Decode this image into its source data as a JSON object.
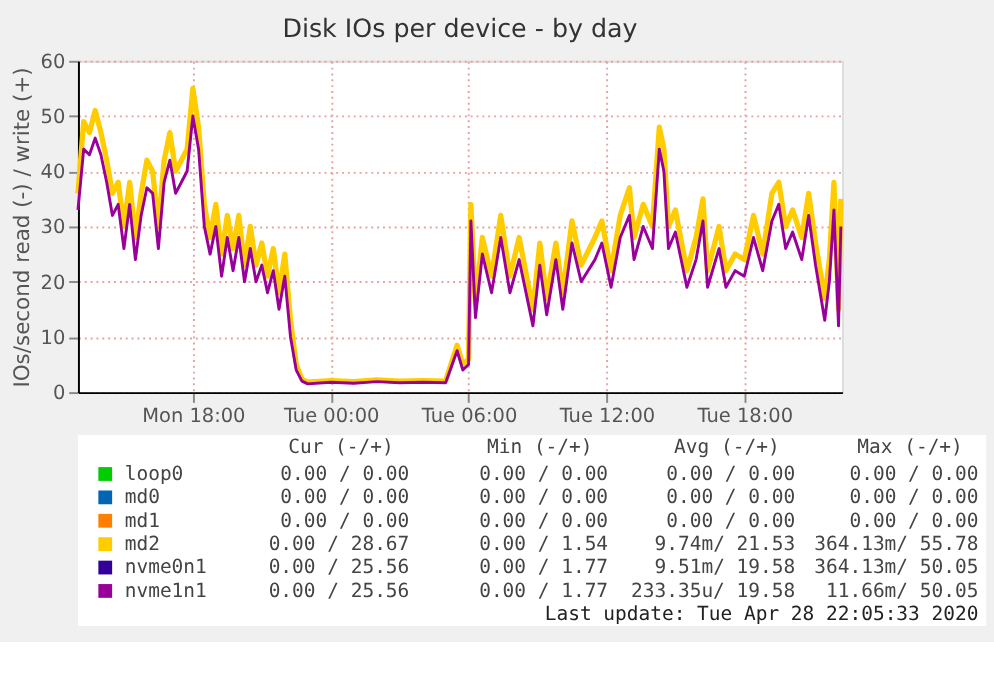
{
  "chart_data": {
    "type": "line",
    "title": "Disk IOs per device - by day",
    "ylabel": "IOs/second read (-) / write (+)",
    "x": [
      "2020-04-27T13:00",
      "2020-04-27T13:15",
      "2020-04-27T13:30",
      "2020-04-27T13:45",
      "2020-04-27T14:00",
      "2020-04-27T14:15",
      "2020-04-27T14:30",
      "2020-04-27T14:45",
      "2020-04-27T15:00",
      "2020-04-27T15:15",
      "2020-04-27T15:30",
      "2020-04-27T15:45",
      "2020-04-27T16:00",
      "2020-04-27T16:15",
      "2020-04-27T16:30",
      "2020-04-27T16:45",
      "2020-04-27T17:00",
      "2020-04-27T17:15",
      "2020-04-27T17:30",
      "2020-04-27T17:45",
      "2020-04-27T18:00",
      "2020-04-27T18:15",
      "2020-04-27T18:30",
      "2020-04-27T18:45",
      "2020-04-27T19:00",
      "2020-04-27T19:15",
      "2020-04-27T19:30",
      "2020-04-27T19:45",
      "2020-04-27T20:00",
      "2020-04-27T20:15",
      "2020-04-27T20:30",
      "2020-04-27T20:45",
      "2020-04-27T21:00",
      "2020-04-27T21:15",
      "2020-04-27T21:30",
      "2020-04-27T21:45",
      "2020-04-27T22:00",
      "2020-04-27T22:15",
      "2020-04-27T22:30",
      "2020-04-27T22:45",
      "2020-04-27T23:00",
      "2020-04-28T00:00",
      "2020-04-28T01:00",
      "2020-04-28T02:00",
      "2020-04-28T03:00",
      "2020-04-28T04:00",
      "2020-04-28T05:00",
      "2020-04-28T05:30",
      "2020-04-28T05:45",
      "2020-04-28T06:00",
      "2020-04-28T06:06",
      "2020-04-28T06:18",
      "2020-04-28T06:36",
      "2020-04-28T07:00",
      "2020-04-28T07:24",
      "2020-04-28T07:48",
      "2020-04-28T08:12",
      "2020-04-28T08:48",
      "2020-04-28T09:06",
      "2020-04-28T09:24",
      "2020-04-28T09:48",
      "2020-04-28T10:06",
      "2020-04-28T10:30",
      "2020-04-28T10:54",
      "2020-04-28T11:30",
      "2020-04-28T11:48",
      "2020-04-28T12:12",
      "2020-04-28T12:36",
      "2020-04-28T13:00",
      "2020-04-28T13:12",
      "2020-04-28T13:36",
      "2020-04-28T14:00",
      "2020-04-28T14:18",
      "2020-04-28T14:30",
      "2020-04-28T14:42",
      "2020-04-28T15:00",
      "2020-04-28T15:30",
      "2020-04-28T15:54",
      "2020-04-28T16:12",
      "2020-04-28T16:24",
      "2020-04-28T16:54",
      "2020-04-28T17:12",
      "2020-04-28T17:36",
      "2020-04-28T18:00",
      "2020-04-28T18:24",
      "2020-04-28T18:48",
      "2020-04-28T19:12",
      "2020-04-28T19:30",
      "2020-04-28T19:48",
      "2020-04-28T20:06",
      "2020-04-28T20:30",
      "2020-04-28T20:48",
      "2020-04-28T21:06",
      "2020-04-28T21:30",
      "2020-04-28T21:42",
      "2020-04-28T21:54",
      "2020-04-28T22:06",
      "2020-04-28T22:12"
    ],
    "series": [
      {
        "name": "loop0",
        "color": "#00cc00",
        "values": [
          null,
          null,
          null,
          null,
          null,
          null,
          null,
          null,
          null,
          null,
          null,
          null,
          null,
          null,
          null,
          null,
          null,
          null,
          null,
          null,
          null,
          null,
          null,
          null,
          null,
          null,
          null,
          null,
          null,
          null,
          null,
          null,
          null,
          null,
          null,
          null,
          null,
          null,
          null,
          null,
          null,
          null,
          null,
          null,
          null,
          null,
          null,
          null,
          null,
          null,
          null,
          null,
          null,
          null,
          null,
          null,
          null,
          null,
          null,
          null,
          null,
          null,
          null,
          null,
          null,
          null,
          null,
          null,
          null,
          null,
          null,
          null,
          null,
          null,
          null,
          null,
          null,
          null,
          null,
          null,
          null,
          null,
          null,
          null,
          null,
          null,
          null,
          null,
          null,
          null,
          null,
          null,
          null,
          null,
          null,
          null,
          null,
          null
        ]
      },
      {
        "name": "md0",
        "color": "#0066b3",
        "values": [
          null,
          null,
          null,
          null,
          null,
          null,
          null,
          null,
          null,
          null,
          null,
          null,
          null,
          null,
          null,
          null,
          null,
          null,
          null,
          null,
          null,
          null,
          null,
          null,
          null,
          null,
          null,
          null,
          null,
          null,
          null,
          null,
          null,
          null,
          null,
          null,
          null,
          null,
          null,
          null,
          null,
          null,
          null,
          null,
          null,
          null,
          null,
          null,
          null,
          null,
          null,
          null,
          null,
          null,
          null,
          null,
          null,
          null,
          null,
          null,
          null,
          null,
          null,
          null,
          null,
          null,
          null,
          null,
          null,
          null,
          null,
          null,
          null,
          null,
          null,
          null,
          null,
          null,
          null,
          null,
          null,
          null,
          null,
          null,
          null,
          null,
          null,
          null,
          null,
          null,
          null,
          null,
          null,
          null,
          null,
          null,
          null,
          null
        ]
      },
      {
        "name": "md1",
        "color": "#ff8000",
        "values": [
          null,
          null,
          null,
          null,
          null,
          null,
          null,
          null,
          null,
          null,
          null,
          null,
          null,
          null,
          null,
          null,
          null,
          null,
          null,
          null,
          null,
          null,
          null,
          null,
          null,
          null,
          null,
          null,
          null,
          null,
          null,
          null,
          null,
          null,
          null,
          null,
          null,
          null,
          null,
          null,
          null,
          null,
          null,
          null,
          null,
          null,
          null,
          null,
          null,
          null,
          null,
          null,
          null,
          null,
          null,
          null,
          null,
          null,
          null,
          null,
          null,
          null,
          null,
          null,
          null,
          null,
          null,
          null,
          null,
          null,
          null,
          null,
          null,
          null,
          null,
          null,
          null,
          null,
          null,
          null,
          null,
          null,
          null,
          null,
          null,
          null,
          null,
          null,
          null,
          null,
          null,
          null,
          null,
          null,
          null,
          null,
          null,
          null
        ]
      },
      {
        "name": "md2",
        "color": "#ffcc00",
        "values": [
          36,
          49,
          47,
          51,
          47,
          42,
          36,
          38,
          30,
          38,
          28,
          36,
          42,
          40,
          30,
          42,
          47,
          40,
          42,
          44,
          55,
          48,
          34,
          28,
          34,
          25,
          32,
          26,
          32,
          23,
          30,
          23,
          27,
          21,
          26,
          18,
          25,
          13,
          5,
          2.3,
          1.8,
          2.1,
          1.9,
          2.2,
          2.0,
          2.1,
          2.0,
          8.5,
          5,
          6,
          34,
          16,
          28,
          21,
          32,
          21,
          28,
          15,
          27,
          17,
          27,
          18,
          31,
          23,
          28,
          31,
          22,
          32,
          37,
          28,
          34,
          30,
          48,
          44,
          30,
          33,
          22,
          28,
          35,
          22,
          30,
          22,
          25,
          24,
          32,
          25,
          36,
          38,
          30,
          33,
          28,
          36,
          27,
          17,
          24,
          38,
          15,
          35
        ]
      },
      {
        "name": "nvme0n1",
        "color": "#330099",
        "values": [
          null,
          null,
          null,
          null,
          null,
          null,
          null,
          null,
          null,
          null,
          null,
          null,
          null,
          null,
          null,
          null,
          null,
          null,
          null,
          null,
          null,
          null,
          null,
          null,
          null,
          null,
          null,
          null,
          null,
          null,
          null,
          null,
          null,
          null,
          null,
          null,
          null,
          null,
          null,
          null,
          null,
          null,
          null,
          null,
          null,
          null,
          null,
          null,
          null,
          null,
          null,
          null,
          null,
          null,
          null,
          null,
          null,
          null,
          null,
          null,
          null,
          null,
          null,
          null,
          null,
          null,
          null,
          null,
          null,
          null,
          null,
          null,
          null,
          null,
          null,
          null,
          null,
          null,
          null,
          null,
          null,
          null,
          null,
          null,
          null,
          null,
          null,
          null,
          null,
          null,
          null,
          null,
          null,
          null,
          null,
          null,
          null,
          null
        ]
      },
      {
        "name": "nvme1n1",
        "color": "#990099",
        "values": [
          33,
          44,
          43,
          46,
          43,
          38,
          32,
          34,
          26,
          34,
          24,
          32,
          37,
          36,
          26,
          38,
          42,
          36,
          38,
          40,
          50,
          44,
          30,
          25,
          30,
          21,
          28,
          22,
          28,
          20,
          26,
          20,
          23,
          18,
          22,
          15,
          21,
          10,
          4,
          2,
          1.5,
          1.8,
          1.6,
          1.9,
          1.7,
          1.8,
          1.7,
          7.5,
          4,
          5,
          31,
          13.5,
          25,
          18,
          28,
          18,
          24,
          12,
          23,
          14,
          24,
          15,
          27,
          20,
          24,
          27,
          19,
          28,
          32,
          24,
          30,
          26,
          44,
          40,
          26,
          29,
          19,
          24,
          31,
          19,
          26,
          19,
          22,
          21,
          28,
          22,
          31,
          34,
          26,
          29,
          24,
          32,
          23,
          13,
          20,
          33,
          12,
          30
        ]
      }
    ],
    "xlim": [
      "2020-04-27T13:00",
      "2020-04-28T22:15"
    ],
    "xticks": [
      {
        "value": "2020-04-27T18:00",
        "label": "Mon 18:00"
      },
      {
        "value": "2020-04-28T00:00",
        "label": "Tue 00:00"
      },
      {
        "value": "2020-04-28T06:00",
        "label": "Tue 06:00"
      },
      {
        "value": "2020-04-28T12:00",
        "label": "Tue 12:00"
      },
      {
        "value": "2020-04-28T18:00",
        "label": "Tue 18:00"
      }
    ],
    "ylim": [
      0,
      60
    ],
    "yticks": [
      0,
      10,
      20,
      30,
      40,
      50,
      60
    ],
    "grid": true,
    "legend": "bottom",
    "line_style": "solid",
    "marker": "none",
    "annotations": [
      "Cur (-/+)",
      "Min (-/+)",
      "Avg (-/+)",
      "Max (-/+)",
      "0.00 /  0.00",
      "0.00 /  0.00",
      "0.00 /  0.00",
      "0.00 /  0.00",
      "0.00 /  0.00",
      "0.00 /  0.00",
      "0.00 /  0.00",
      "0.00 /  0.00",
      "0.00 /  0.00",
      "0.00 /  0.00",
      "0.00 /  0.00",
      "0.00 /  0.00",
      "0.00 / 28.67",
      "0.00 /  1.54",
      "9.74m/ 21.53",
      "364.13m/ 55.78",
      "0.00 / 25.56",
      "0.00 /  1.77",
      "9.51m/ 19.58",
      "364.13m/ 50.05",
      "0.00 / 25.56",
      "0.00 /  1.77",
      "233.35u/ 19.58",
      "11.66m/ 50.05",
      "Last update: Tue Apr 28 22:05:33 2020"
    ]
  }
}
